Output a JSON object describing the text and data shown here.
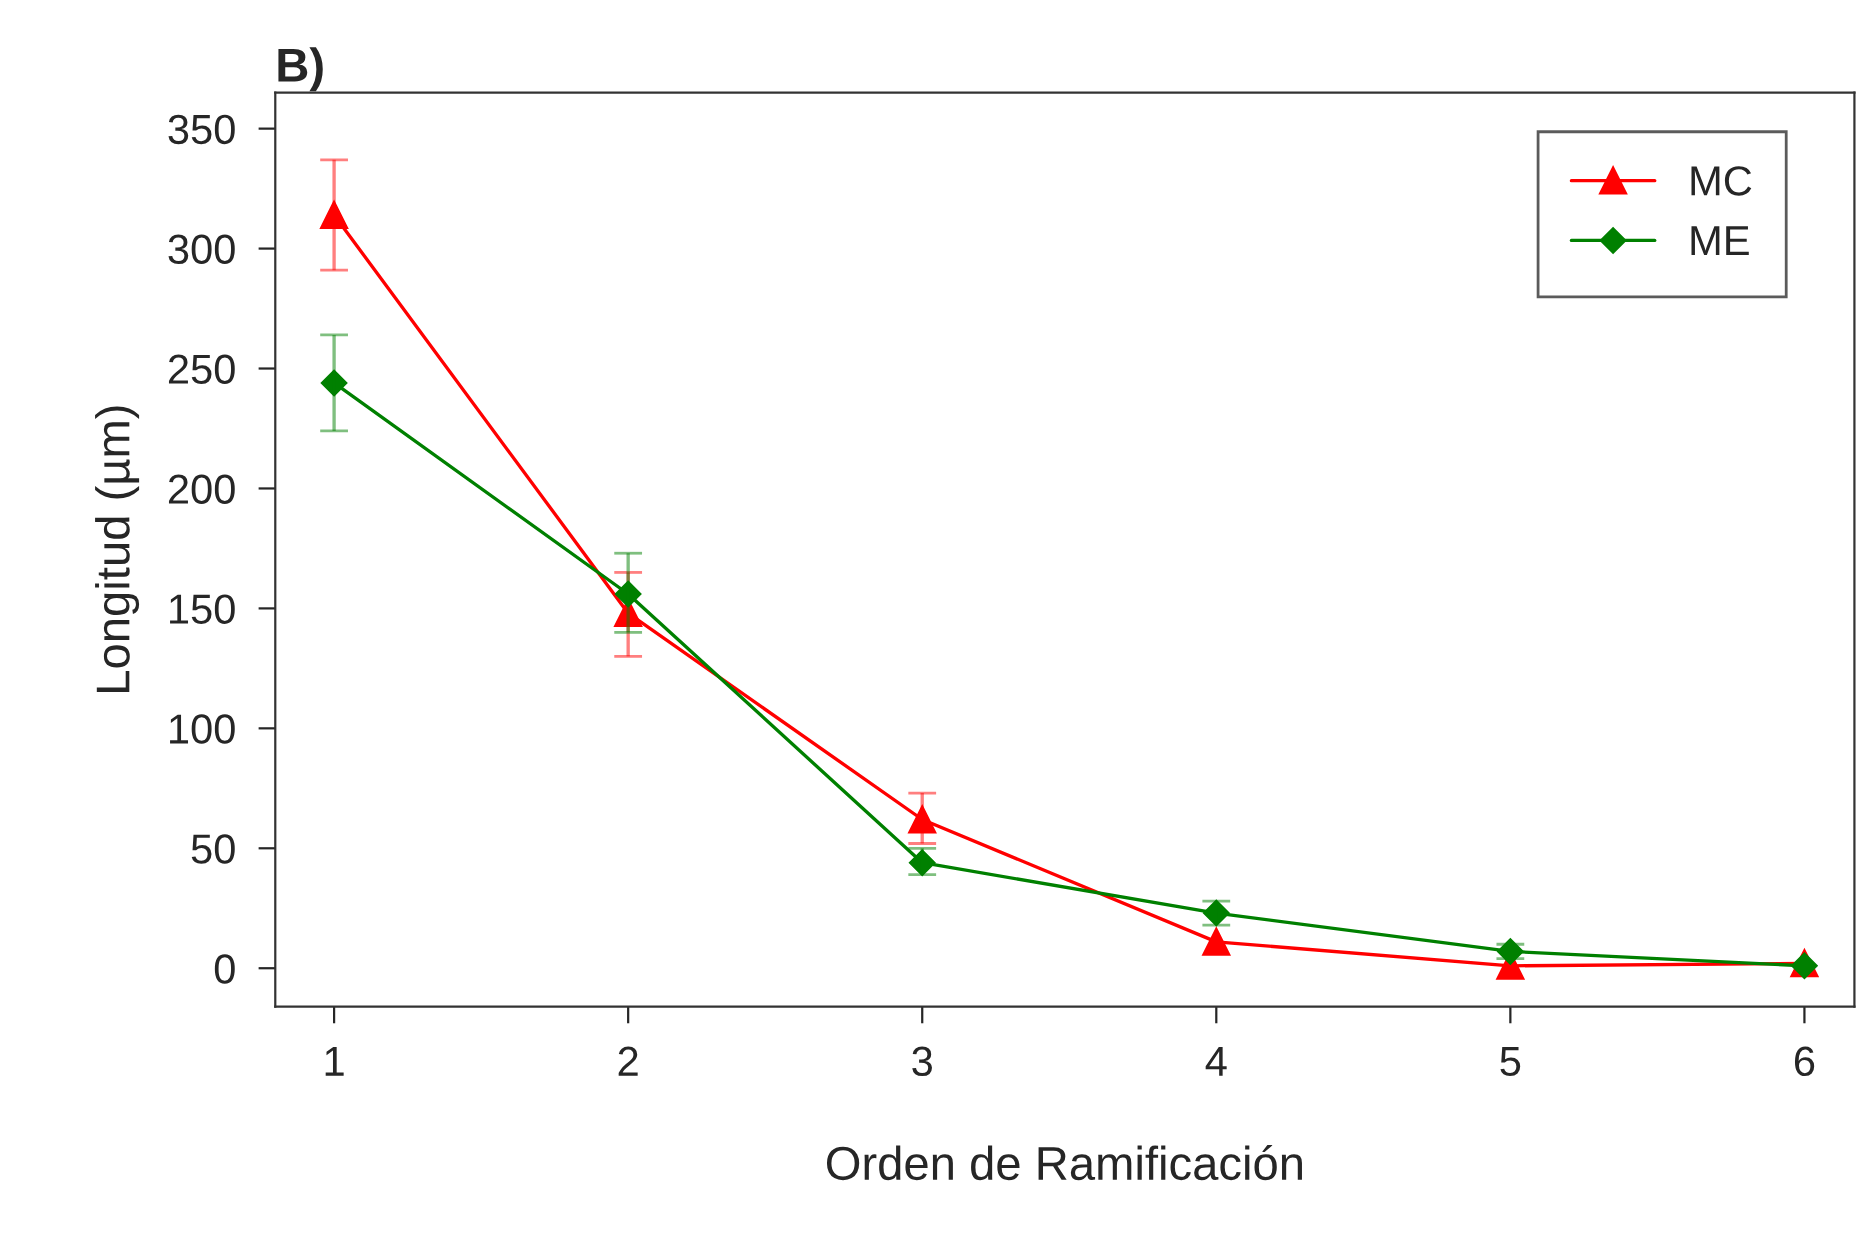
{
  "chart_data": {
    "type": "line",
    "title": "B)",
    "xlabel": "Orden de Ramificación",
    "ylabel": "Longitud (µm)",
    "x": [
      1,
      2,
      3,
      4,
      5,
      6
    ],
    "xlim": [
      0.8,
      6.17
    ],
    "xticks": [
      1,
      2,
      3,
      4,
      5,
      6
    ],
    "ylim": [
      -16,
      365
    ],
    "yticks": [
      0,
      50,
      100,
      150,
      200,
      250,
      300,
      350
    ],
    "series": [
      {
        "name": "MC",
        "color": "#ff0000",
        "marker": "triangle",
        "values": [
          314,
          148,
          62,
          11,
          1,
          2
        ],
        "errors": [
          [
            291,
            337
          ],
          [
            130,
            165
          ],
          [
            52,
            73
          ],
          null,
          null,
          null
        ]
      },
      {
        "name": "ME",
        "color": "#008000",
        "marker": "diamond",
        "values": [
          244,
          156,
          44,
          23,
          7,
          1
        ],
        "errors": [
          [
            224,
            264
          ],
          [
            140,
            173
          ],
          [
            39,
            50
          ],
          [
            18,
            28
          ],
          [
            4,
            10
          ],
          null
        ]
      }
    ],
    "legend": "top right",
    "grid": false,
    "line_style": "solid"
  }
}
